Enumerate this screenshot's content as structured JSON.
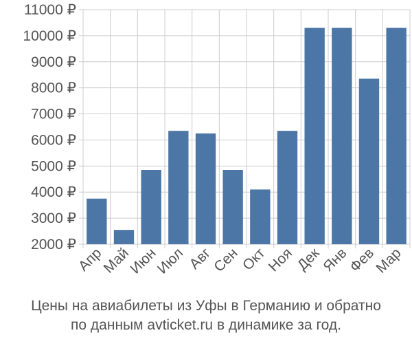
{
  "chart_data": {
    "type": "bar",
    "categories": [
      "Апр",
      "Май",
      "Июн",
      "Июл",
      "Авг",
      "Сен",
      "Окт",
      "Ноя",
      "Дек",
      "Янв",
      "Фев",
      "Мар"
    ],
    "values": [
      3750,
      2550,
      4850,
      6350,
      6250,
      4850,
      4100,
      6350,
      10300,
      10300,
      8350,
      10300
    ],
    "ylim": [
      2000,
      11000
    ],
    "yticks": [
      2000,
      3000,
      4000,
      5000,
      6000,
      7000,
      8000,
      9000,
      10000,
      11000
    ],
    "ytick_labels": [
      "2000 ₽",
      "3000 ₽",
      "4000 ₽",
      "5000 ₽",
      "6000 ₽",
      "7000 ₽",
      "8000 ₽",
      "9000 ₽",
      "10000 ₽",
      "11000 ₽"
    ],
    "grid": true,
    "bar_color": "#4c76a6",
    "grid_color": "#cccccc",
    "caption_line1": "Цены на авиабилеты из Уфы в Германию и обратно",
    "caption_line2": "по данным avticket.ru в динамике за год."
  }
}
